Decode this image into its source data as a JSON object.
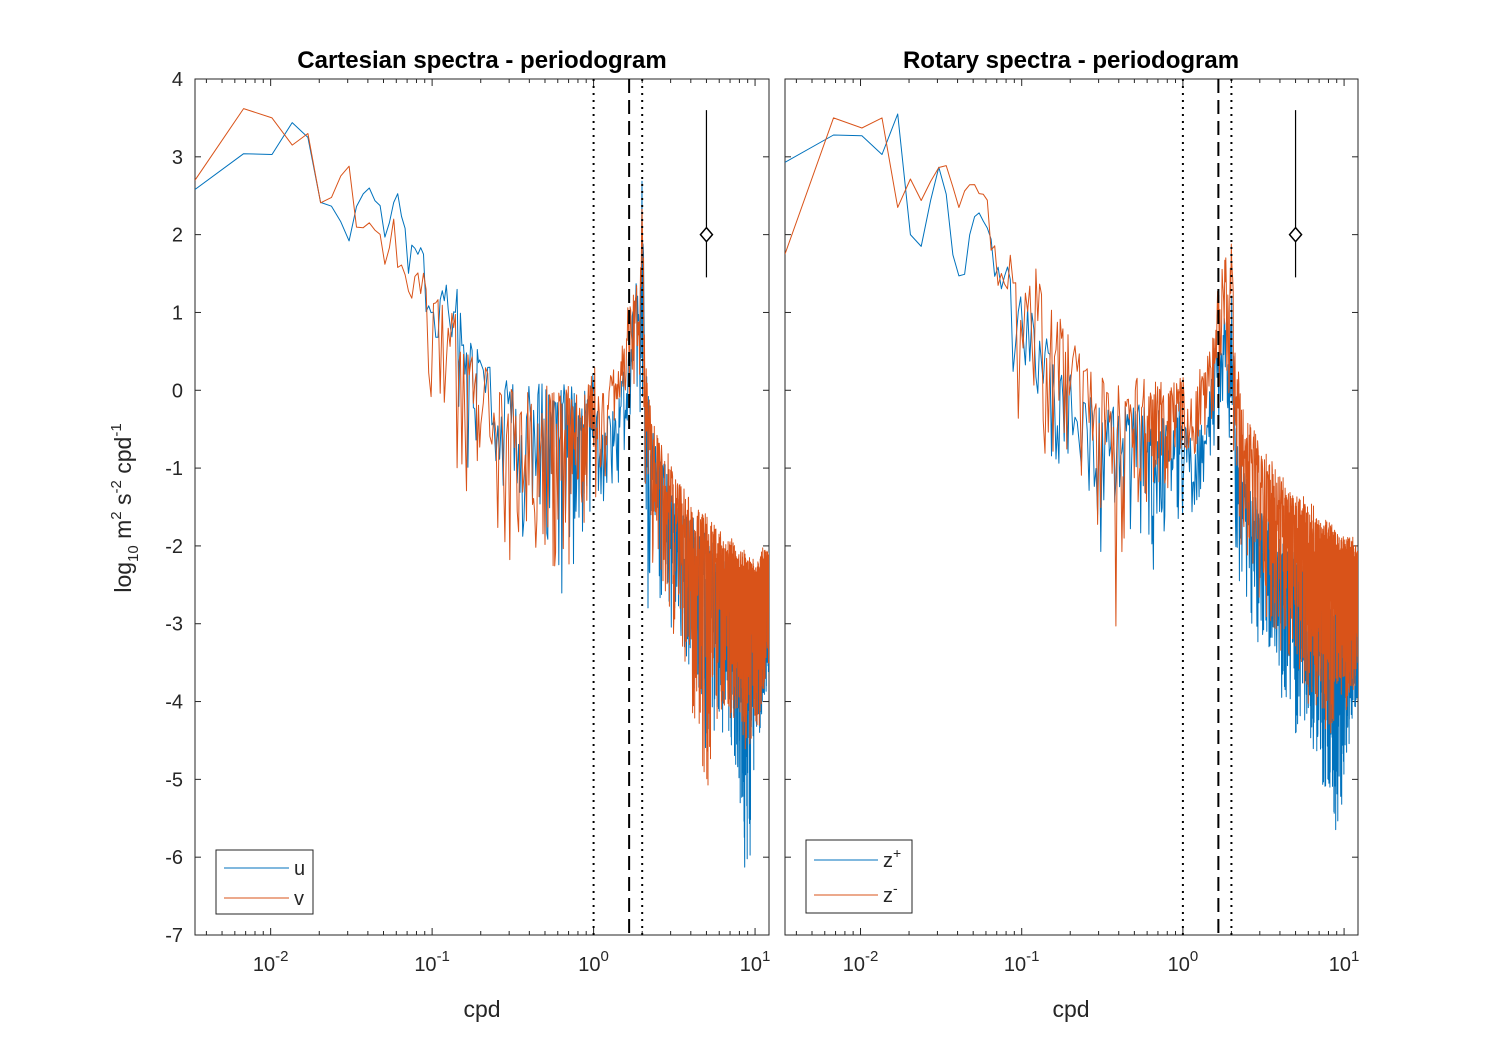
{
  "figure": {
    "ylabel": {
      "base": "log",
      "base_sub": "10",
      "unit_1": " m",
      "sup_1": "2",
      "unit_2": " s",
      "sup_2": "-2",
      "unit_3": " cpd",
      "sup_3": "-1"
    }
  },
  "chart_data": [
    {
      "type": "line",
      "title": "Cartesian spectra - periodogram",
      "xlabel": "cpd",
      "xscale": "log",
      "xlim": [
        0.0034,
        12.2
      ],
      "ylim": [
        -7,
        4
      ],
      "yticks": [
        "4",
        "3",
        "2",
        "1",
        "0",
        "-1",
        "-2",
        "-3",
        "-4",
        "-5",
        "-6",
        "-7"
      ],
      "xticks": [
        {
          "base": "10",
          "exp": "-2"
        },
        {
          "base": "10",
          "exp": "-1"
        },
        {
          "base": "10",
          "exp": "0"
        },
        {
          "base": "10",
          "exp": "1"
        }
      ],
      "legend": {
        "placement": "bottom-left",
        "entries": [
          {
            "label": "u",
            "sup": ""
          },
          {
            "label": "v",
            "sup": ""
          }
        ]
      },
      "reference_lines": [
        {
          "x": 1.0,
          "style": "dotted"
        },
        {
          "x": 1.66,
          "style": "dashed"
        },
        {
          "x": 2.0,
          "style": "dotted"
        }
      ],
      "error_bar": {
        "x": 5.0,
        "center": 2.0,
        "lower": 1.45,
        "upper": 3.6
      },
      "series": [
        {
          "name": "u",
          "color": "#0072BD",
          "x": [
            0.0034,
            0.0068,
            0.0102,
            0.0136,
            0.017,
            0.02,
            0.025,
            0.03,
            0.035,
            0.04,
            0.05,
            0.06,
            0.07,
            0.08,
            0.09,
            0.1,
            0.12,
            0.14,
            0.16,
            0.18,
            0.2,
            0.23,
            0.26,
            0.3,
            0.35,
            0.4,
            0.45,
            0.5,
            0.6,
            0.7,
            0.8,
            0.9,
            1.0,
            1.1,
            1.25,
            1.4,
            1.55,
            1.66,
            1.75,
            1.85,
            1.93,
            2.0,
            2.1,
            2.3,
            2.6,
            3.0,
            3.5,
            4.0,
            5.0,
            6.0,
            7.0,
            8.0,
            9.0,
            10.0,
            11.0,
            12.2
          ],
          "y": [
            2.58,
            3.04,
            3.03,
            3.44,
            3.25,
            2.42,
            2.35,
            1.95,
            2.4,
            2.6,
            2.3,
            2.7,
            1.85,
            2.0,
            1.6,
            1.2,
            1.4,
            1.3,
            0.6,
            0.8,
            0.3,
            0.5,
            -0.2,
            0.1,
            -0.3,
            0.0,
            0.1,
            -0.1,
            -0.2,
            0.1,
            -0.3,
            -0.1,
            0.1,
            -0.6,
            -0.2,
            -0.4,
            0.4,
            0.5,
            1.1,
            1.4,
            0.6,
            2.9,
            0.2,
            -0.6,
            -0.9,
            -1.2,
            -1.5,
            -1.7,
            -1.9,
            -2.2,
            -2.3,
            -2.6,
            -2.8,
            -3.0,
            -2.6,
            -2.7
          ],
          "y_min_envelope": [
            2.58,
            3.04,
            3.03,
            3.44,
            3.25,
            2.42,
            2.35,
            1.95,
            2.2,
            2.4,
            2.0,
            2.2,
            1.5,
            1.3,
            0.8,
            0.3,
            -0.5,
            -0.8,
            -1.3,
            -0.7,
            -1.0,
            -0.5,
            -1.6,
            -1.2,
            -2.2,
            -1.5,
            -2.8,
            -2.5,
            -2.8,
            -2.6,
            -1.8,
            -2.2,
            -1.2,
            -1.4,
            -1.3,
            -1.6,
            -0.9,
            -0.5,
            0.0,
            0.2,
            -0.6,
            0.0,
            -3.3,
            -2.3,
            -2.8,
            -3.0,
            -3.4,
            -3.7,
            -4.6,
            -4.2,
            -4.6,
            -5.3,
            -6.6,
            -4.6,
            -4.3,
            -3.6
          ]
        },
        {
          "name": "v",
          "color": "#D95319",
          "x": [
            0.0034,
            0.0068,
            0.0102,
            0.0136,
            0.017,
            0.02,
            0.025,
            0.03,
            0.035,
            0.04,
            0.05,
            0.06,
            0.07,
            0.08,
            0.09,
            0.1,
            0.12,
            0.14,
            0.16,
            0.18,
            0.2,
            0.23,
            0.26,
            0.3,
            0.35,
            0.4,
            0.45,
            0.5,
            0.6,
            0.7,
            0.8,
            0.9,
            1.0,
            1.1,
            1.25,
            1.4,
            1.55,
            1.66,
            1.75,
            1.85,
            1.93,
            2.0,
            2.1,
            2.3,
            2.6,
            3.0,
            3.5,
            4.0,
            5.0,
            6.0,
            7.0,
            8.0,
            9.0,
            10.0,
            11.0,
            12.2
          ],
          "y": [
            2.7,
            3.62,
            3.5,
            3.15,
            3.3,
            2.4,
            2.5,
            3.05,
            2.2,
            2.6,
            2.1,
            2.25,
            1.5,
            1.95,
            1.4,
            1.2,
            1.1,
            0.9,
            0.7,
            0.4,
            0.3,
            0.2,
            0.0,
            0.0,
            -0.2,
            -0.1,
            0.0,
            0.2,
            -0.1,
            0.0,
            -0.2,
            -0.1,
            0.3,
            -0.2,
            0.1,
            0.2,
            0.6,
            1.2,
            1.1,
            1.3,
            0.9,
            2.5,
            0.3,
            -0.4,
            -0.7,
            -1.0,
            -1.3,
            -1.5,
            -1.7,
            -1.9,
            -2.0,
            -2.1,
            -2.2,
            -2.3,
            -2.1,
            -2.2
          ],
          "y_min_envelope": [
            2.7,
            3.62,
            3.5,
            3.15,
            3.3,
            2.4,
            2.3,
            2.8,
            1.7,
            2.1,
            1.6,
            1.4,
            0.9,
            0.8,
            0.6,
            -0.6,
            -0.5,
            -1.0,
            -2.1,
            -1.3,
            -1.1,
            -1.6,
            -1.8,
            -2.2,
            -2.4,
            -2.0,
            -2.3,
            -2.1,
            -2.6,
            -2.3,
            -1.9,
            -1.7,
            -1.5,
            -1.2,
            -1.3,
            -1.0,
            -0.7,
            -0.4,
            0.1,
            0.3,
            -0.3,
            0.2,
            -1.6,
            -2.3,
            -2.6,
            -2.9,
            -3.4,
            -3.9,
            -5.55,
            -4.0,
            -4.3,
            -4.2,
            -4.8,
            -4.5,
            -4.2,
            -3.6
          ]
        }
      ]
    },
    {
      "type": "line",
      "title": "Rotary spectra - periodogram",
      "xlabel": "cpd",
      "xscale": "log",
      "xlim": [
        0.0034,
        12.2
      ],
      "ylim": [
        -7,
        4
      ],
      "xticks": [
        {
          "base": "10",
          "exp": "-2"
        },
        {
          "base": "10",
          "exp": "-1"
        },
        {
          "base": "10",
          "exp": "0"
        },
        {
          "base": "10",
          "exp": "1"
        }
      ],
      "legend": {
        "placement": "bottom-left",
        "entries": [
          {
            "label": "z",
            "sup": "+"
          },
          {
            "label": "z",
            "sup": "-"
          }
        ]
      },
      "reference_lines": [
        {
          "x": 1.0,
          "style": "dotted"
        },
        {
          "x": 1.66,
          "style": "dashed"
        },
        {
          "x": 2.0,
          "style": "dotted"
        }
      ],
      "error_bar": {
        "x": 5.0,
        "center": 2.0,
        "lower": 1.45,
        "upper": 3.6
      },
      "series": [
        {
          "name": "z⁺",
          "color": "#0072BD",
          "x": [
            0.0034,
            0.0068,
            0.0102,
            0.0136,
            0.017,
            0.02,
            0.025,
            0.03,
            0.035,
            0.04,
            0.05,
            0.06,
            0.07,
            0.08,
            0.09,
            0.1,
            0.12,
            0.14,
            0.16,
            0.18,
            0.2,
            0.23,
            0.26,
            0.3,
            0.35,
            0.4,
            0.45,
            0.5,
            0.6,
            0.7,
            0.8,
            0.9,
            1.0,
            1.1,
            1.25,
            1.4,
            1.55,
            1.66,
            1.75,
            1.85,
            1.93,
            2.0,
            2.1,
            2.3,
            2.6,
            3.0,
            3.5,
            4.0,
            5.0,
            6.0,
            7.0,
            8.0,
            9.0,
            10.0,
            11.0,
            12.2
          ],
          "y": [
            2.93,
            3.28,
            3.27,
            3.03,
            3.55,
            2.02,
            1.8,
            3.18,
            2.4,
            1.45,
            2.2,
            2.3,
            1.55,
            1.9,
            0.9,
            1.3,
            0.9,
            0.7,
            0.3,
            0.5,
            0.2,
            0.1,
            -0.2,
            -0.1,
            -0.4,
            -0.2,
            -0.3,
            -0.1,
            -0.4,
            -0.2,
            -0.5,
            -0.3,
            -0.2,
            -0.7,
            -0.3,
            -0.5,
            0.3,
            0.9,
            0.5,
            1.5,
            0.3,
            1.9,
            -0.3,
            -0.9,
            -1.2,
            -1.5,
            -1.8,
            -2.0,
            -2.2,
            -2.4,
            -2.6,
            -2.8,
            -2.9,
            -3.0,
            -2.9,
            -2.9
          ],
          "y_min_envelope": [
            2.93,
            3.28,
            3.27,
            3.03,
            3.55,
            2.02,
            1.8,
            2.8,
            2.2,
            1.45,
            1.6,
            1.7,
            1.1,
            0.9,
            -0.2,
            -0.1,
            -0.7,
            -0.9,
            -1.0,
            -1.8,
            -0.9,
            -1.6,
            -1.3,
            -2.8,
            -1.9,
            -1.9,
            -2.0,
            -2.0,
            -2.6,
            -2.3,
            -1.9,
            -1.6,
            -1.8,
            -1.6,
            -1.6,
            -1.4,
            -1.0,
            -0.5,
            -0.5,
            0.1,
            -0.8,
            -0.4,
            -2.0,
            -2.6,
            -2.9,
            -3.2,
            -3.6,
            -4.0,
            -4.4,
            -4.6,
            -4.9,
            -5.2,
            -5.95,
            -5.1,
            -4.3,
            -4.1
          ]
        },
        {
          "name": "z⁻",
          "color": "#D95319",
          "x": [
            0.0034,
            0.0068,
            0.0102,
            0.0136,
            0.017,
            0.02,
            0.025,
            0.03,
            0.035,
            0.04,
            0.05,
            0.06,
            0.07,
            0.08,
            0.09,
            0.1,
            0.12,
            0.14,
            0.16,
            0.18,
            0.2,
            0.23,
            0.26,
            0.3,
            0.35,
            0.4,
            0.45,
            0.5,
            0.6,
            0.7,
            0.8,
            0.9,
            1.0,
            1.1,
            1.25,
            1.4,
            1.55,
            1.66,
            1.75,
            1.85,
            1.93,
            2.0,
            2.1,
            2.3,
            2.6,
            3.0,
            3.5,
            4.0,
            5.0,
            6.0,
            7.0,
            8.0,
            9.0,
            10.0,
            11.0,
            12.2
          ],
          "y": [
            1.75,
            3.5,
            3.37,
            3.5,
            2.35,
            2.75,
            2.35,
            3.07,
            2.9,
            2.6,
            2.9,
            2.5,
            2.0,
            1.8,
            1.5,
            1.3,
            1.5,
            1.2,
            0.9,
            0.8,
            0.6,
            0.5,
            0.3,
            0.2,
            0.0,
            0.1,
            -0.1,
            0.1,
            0.0,
            0.1,
            -0.1,
            0.0,
            0.2,
            -0.3,
            0.2,
            0.3,
            0.7,
            1.3,
            1.5,
            1.6,
            1.0,
            2.0,
            0.6,
            -0.2,
            -0.5,
            -0.8,
            -1.0,
            -1.2,
            -1.4,
            -1.5,
            -1.7,
            -1.8,
            -1.9,
            -2.0,
            -2.0,
            -2.0
          ],
          "y_min_envelope": [
            1.75,
            3.5,
            3.37,
            3.5,
            2.35,
            2.55,
            2.2,
            2.6,
            2.4,
            2.2,
            2.5,
            2.0,
            1.3,
            1.0,
            -1.0,
            0.0,
            -0.2,
            -0.8,
            -1.6,
            -1.1,
            -0.5,
            -1.5,
            -1.0,
            -1.9,
            -2.0,
            -3.75,
            -1.6,
            -1.4,
            -1.7,
            -1.5,
            -1.3,
            -1.0,
            -0.9,
            -0.8,
            -1.0,
            -0.6,
            -0.4,
            0.0,
            -0.3,
            0.4,
            -0.5,
            0.0,
            -1.6,
            -2.1,
            -2.5,
            -2.8,
            -3.1,
            -3.6,
            -3.8,
            -4.1,
            -4.4,
            -4.5,
            -4.3,
            -4.2,
            -4.0,
            -3.9
          ]
        }
      ]
    }
  ]
}
